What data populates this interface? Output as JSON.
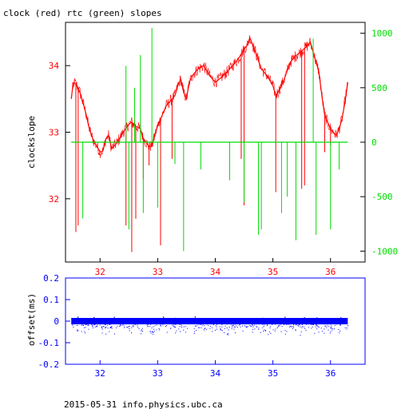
{
  "header": {
    "title": "clock (red) rtc (green) slopes"
  },
  "footer": {
    "text": "2015-05-31 info.physics.ubc.ca"
  },
  "colors": {
    "clock": "#ff0000",
    "rtc": "#00dd00",
    "offset": "#0000ff",
    "frame": "#000000"
  },
  "chart_data": [
    {
      "type": "line",
      "title": "clock (red) rtc (green) slopes",
      "ylabel": "clockslope",
      "y2label": "",
      "xlim": [
        31.4,
        36.6
      ],
      "ylim": [
        31.05,
        34.65
      ],
      "y2lim": [
        -1100,
        1100
      ],
      "x_ticks": [
        32,
        33,
        34,
        35,
        36
      ],
      "y_ticks": [
        32,
        33,
        34
      ],
      "y2_ticks": [
        -1000,
        -500,
        0,
        500,
        1000
      ],
      "grid": false,
      "series": [
        {
          "axis": "left",
          "color": "#ff0000",
          "x": [
            31.5,
            31.52,
            31.55,
            31.6,
            31.65,
            31.7,
            31.75,
            31.8,
            31.85,
            31.9,
            31.95,
            32.0,
            32.05,
            32.1,
            32.15,
            32.2,
            32.3,
            32.4,
            32.5,
            32.55,
            32.6,
            32.7,
            32.75,
            32.8,
            32.85,
            32.9,
            32.95,
            33.0,
            33.05,
            33.1,
            33.15,
            33.2,
            33.25,
            33.3,
            33.35,
            33.4,
            33.45,
            33.5,
            33.55,
            33.6,
            33.7,
            33.8,
            33.9,
            34.0,
            34.1,
            34.2,
            34.3,
            34.4,
            34.5,
            34.55,
            34.6,
            34.7,
            34.8,
            34.9,
            35.0,
            35.05,
            35.1,
            35.2,
            35.3,
            35.4,
            35.5,
            35.6,
            35.65,
            35.7,
            35.8,
            35.85,
            35.9,
            35.95,
            36.0,
            36.05,
            36.1,
            36.15,
            36.2,
            36.25,
            36.3
          ],
          "y": [
            33.5,
            33.65,
            33.75,
            33.7,
            33.6,
            33.45,
            33.3,
            33.1,
            32.95,
            32.85,
            32.78,
            32.7,
            32.72,
            32.9,
            32.95,
            32.75,
            32.85,
            33.0,
            33.12,
            33.15,
            33.1,
            33.05,
            32.9,
            32.85,
            32.78,
            32.8,
            32.95,
            33.1,
            33.2,
            33.3,
            33.4,
            33.45,
            33.5,
            33.55,
            33.7,
            33.8,
            33.6,
            33.5,
            33.75,
            33.85,
            33.95,
            34.0,
            33.85,
            33.75,
            33.82,
            33.9,
            34.0,
            34.1,
            34.25,
            34.3,
            34.42,
            34.2,
            33.95,
            33.85,
            33.7,
            33.55,
            33.62,
            33.8,
            34.05,
            34.15,
            34.22,
            34.3,
            34.35,
            34.2,
            33.9,
            33.55,
            33.25,
            33.15,
            33.05,
            33.0,
            32.95,
            33.05,
            33.2,
            33.45,
            33.75
          ]
        },
        {
          "axis": "right",
          "color": "#00dd00",
          "x": [
            31.5,
            36.3
          ],
          "y": [
            0,
            0
          ]
        }
      ],
      "annotations": []
    },
    {
      "type": "scatter",
      "title": "",
      "ylabel": "offset(ms)",
      "xlim": [
        31.4,
        36.6
      ],
      "ylim": [
        -0.2,
        0.2
      ],
      "x_ticks": [
        32,
        33,
        34,
        35,
        36
      ],
      "y_ticks": [
        -0.2,
        -0.1,
        0,
        0.1,
        0.2
      ],
      "y_tick_labels": [
        "-0.2",
        "-0.1",
        "0",
        "0.1",
        "0.2"
      ],
      "grid": false,
      "series": [
        {
          "color": "#0000ff",
          "x_range": [
            31.5,
            36.3
          ],
          "center": 0.0,
          "band": 0.012,
          "lower_scatter_min": -0.06
        }
      ]
    }
  ]
}
